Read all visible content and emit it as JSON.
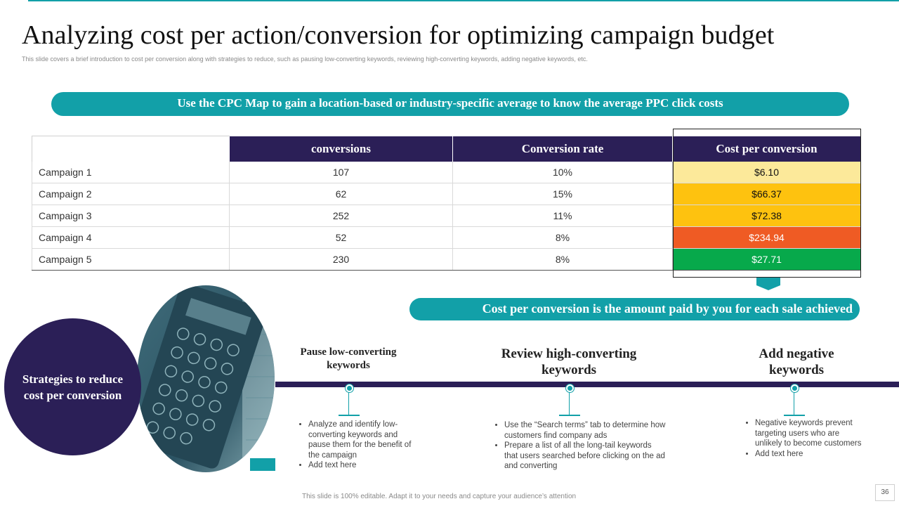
{
  "title": "Analyzing cost per action/conversion for optimizing campaign budget",
  "subtitle": "This slide covers a brief introduction to cost per conversion along with strategies to reduce, such as pausing low-converting keywords, reviewing high-converting keywords, adding negative keywords, etc.",
  "banner": "Use the CPC Map to gain a location-based or industry-specific average to know the average PPC click costs",
  "table": {
    "headers": [
      "conversions",
      "Conversion rate",
      "Cost per conversion"
    ],
    "rows": [
      {
        "name": "Campaign 1",
        "conversions": "107",
        "rate": "10%",
        "cost": "$6.10",
        "color": "#fce99a",
        "text": "#111111"
      },
      {
        "name": "Campaign 2",
        "conversions": "62",
        "rate": "15%",
        "cost": "$66.37",
        "color": "#fec20f",
        "text": "#111111"
      },
      {
        "name": "Campaign 3",
        "conversions": "252",
        "rate": "11%",
        "cost": "$72.38",
        "color": "#fec20f",
        "text": "#111111"
      },
      {
        "name": "Campaign 4",
        "conversions": "52",
        "rate": "8%",
        "cost": "$234.94",
        "color": "#ef5b24",
        "text": "#ffffff"
      },
      {
        "name": "Campaign 5",
        "conversions": "230",
        "rate": "8%",
        "cost": "$27.71",
        "color": "#07a94b",
        "text": "#ffffff"
      }
    ]
  },
  "cost_banner": "Cost per conversion is the amount paid by you for each sale achieved",
  "strategies": {
    "label": "Strategies to reduce cost per conversion",
    "steps": [
      {
        "title": "Pause low-converting keywords",
        "bullets": [
          "Analyze  and identify low-converting keywords and pause them for the benefit of the campaign",
          "Add text here"
        ]
      },
      {
        "title": "Review high-converting keywords",
        "bullets": [
          "Use the “Search terms” tab to determine how customers find company ads",
          "Prepare a list of all the long-tail keywords that users searched before clicking on the ad and converting"
        ]
      },
      {
        "title": "Add negative keywords",
        "bullets": [
          "Negative keywords prevent targeting users who are unlikely to become customers",
          "Add text here"
        ]
      }
    ]
  },
  "footer": "This slide is 100% editable. Adapt it to your needs and capture your audience’s attention",
  "page_number": "36",
  "colors": {
    "teal": "#12a0a8",
    "navy": "#2b1f57"
  }
}
